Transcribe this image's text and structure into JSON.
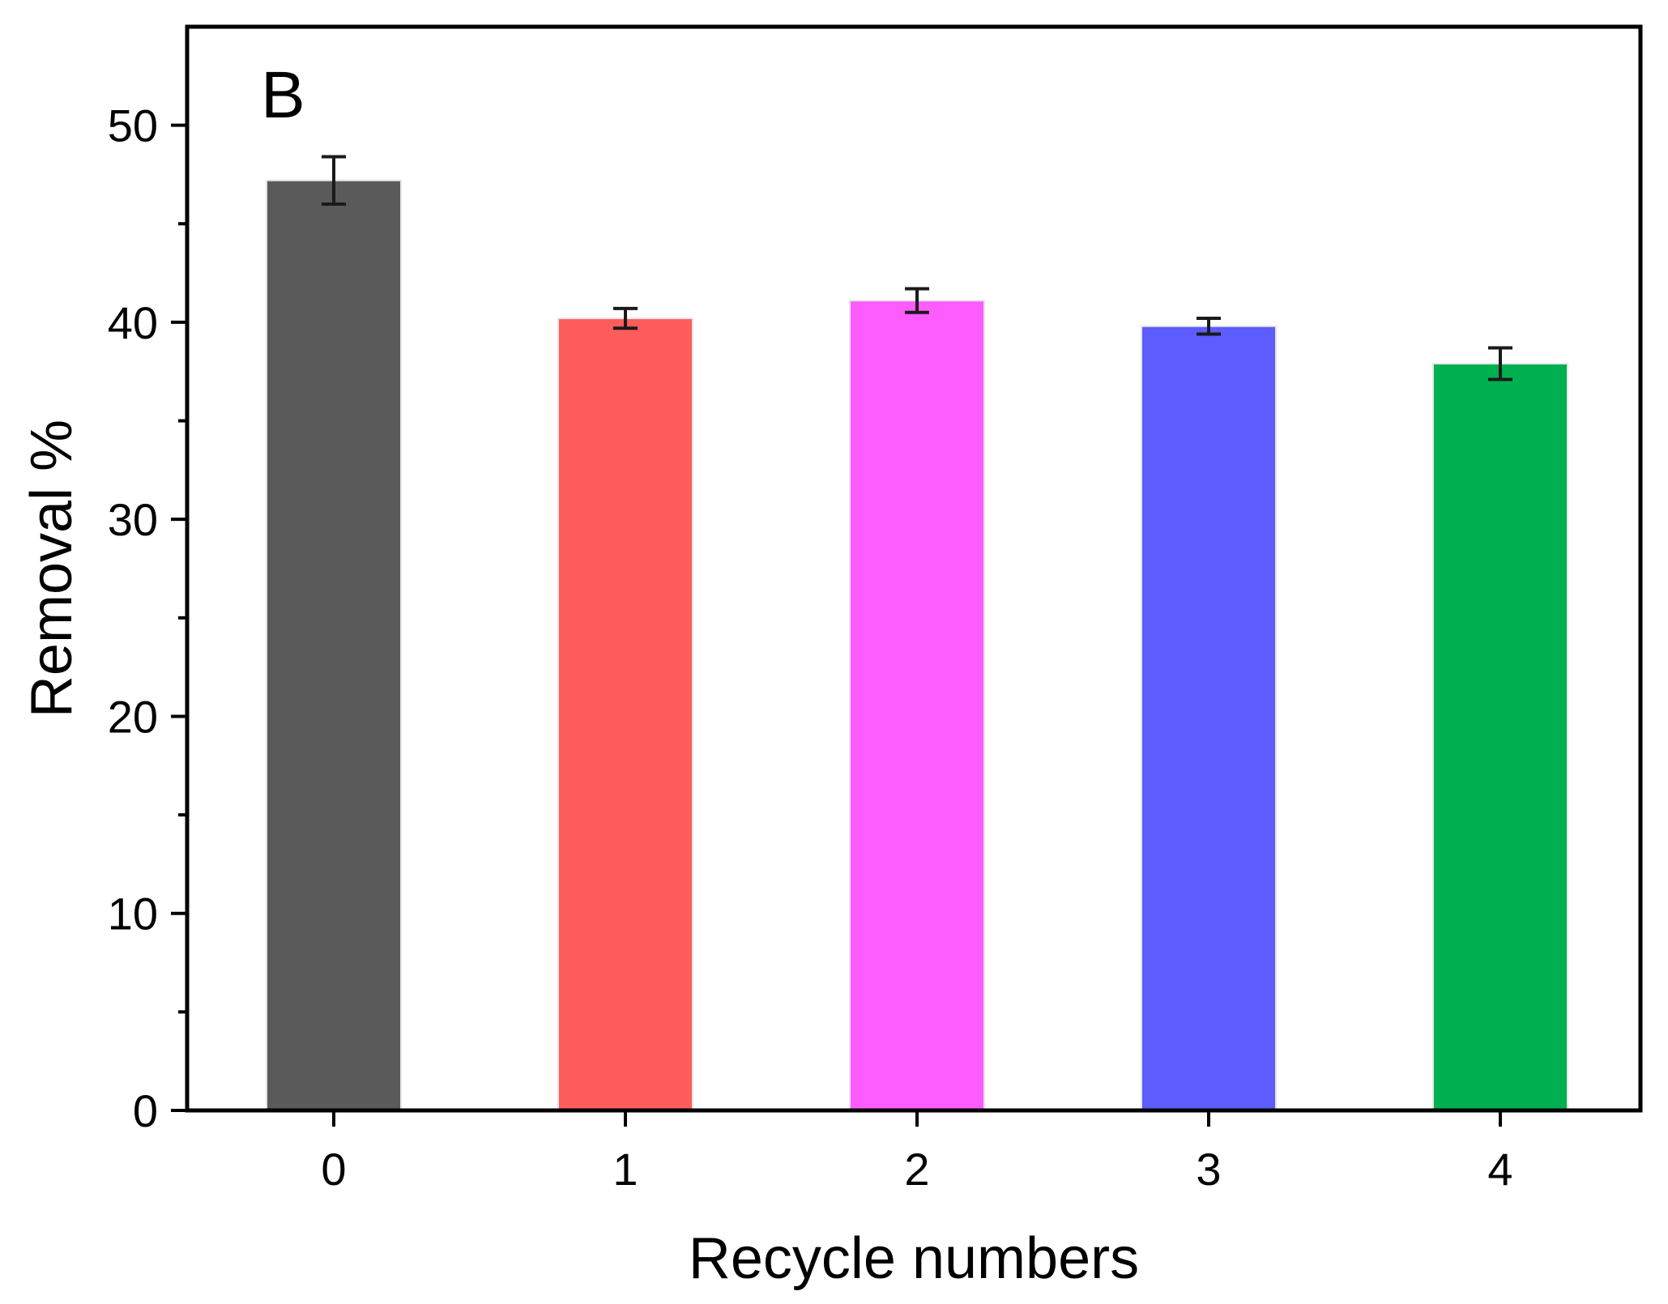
{
  "chart_data": {
    "type": "bar",
    "panel_label": "B",
    "title": "",
    "xlabel": "Recycle numbers",
    "ylabel": "Removal %",
    "categories": [
      "0",
      "1",
      "2",
      "3",
      "4"
    ],
    "values": [
      47.2,
      40.2,
      41.1,
      39.8,
      37.9
    ],
    "errors": [
      1.2,
      0.5,
      0.6,
      0.4,
      0.8
    ],
    "bar_colors": [
      "#5a5a5a",
      "#ff5c5c",
      "#ff5cff",
      "#5c5cff",
      "#00b050"
    ],
    "ylim": [
      0,
      55
    ],
    "yticks": [
      0,
      10,
      20,
      30,
      40,
      50
    ],
    "yticks_minor": [
      5,
      15,
      25,
      35,
      45
    ],
    "grid": false,
    "legend": "none"
  }
}
